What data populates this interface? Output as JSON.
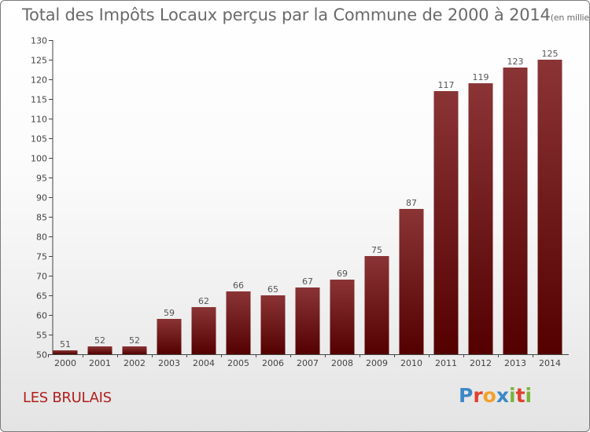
{
  "title": "Total des Impôts Locaux perçus par la Commune de 2000 à 2014",
  "unit": "(en milliers d'€)",
  "commune": "LES BRULAIS",
  "logo": [
    "P",
    "r",
    "o",
    "x",
    "i",
    "t",
    "i"
  ],
  "colors": {
    "bar_top": "#8a3436",
    "bar_bottom": "#540000",
    "axis": "#444444",
    "grid": "#cfcfcf",
    "title_text": "#6a6a6a",
    "commune_text": "#b0201e"
  },
  "chart_data": {
    "type": "bar",
    "title": "Total des Impôts Locaux perçus par la Commune de 2000 à 2014",
    "xlabel": "",
    "ylabel": "",
    "categories": [
      "2000",
      "2001",
      "2002",
      "2003",
      "2004",
      "2005",
      "2006",
      "2007",
      "2008",
      "2009",
      "2010",
      "2011",
      "2012",
      "2013",
      "2014"
    ],
    "values": [
      51,
      52,
      52,
      59,
      62,
      66,
      65,
      67,
      69,
      75,
      87,
      117,
      119,
      123,
      125
    ],
    "ylim": [
      50,
      130
    ],
    "yticks": [
      50,
      55,
      60,
      65,
      70,
      75,
      80,
      85,
      90,
      95,
      100,
      105,
      110,
      115,
      120,
      125,
      130
    ],
    "data_labels": true,
    "grid": false
  }
}
